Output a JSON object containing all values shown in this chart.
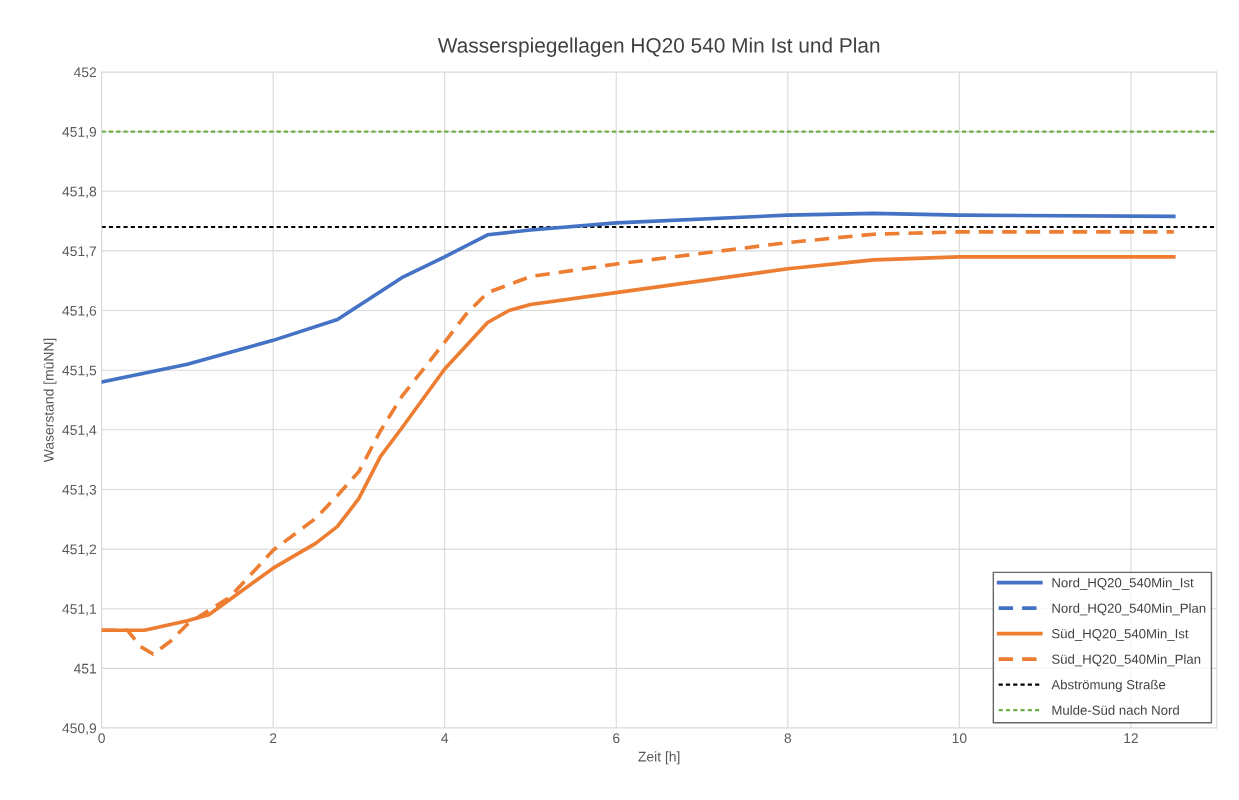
{
  "chart_data": {
    "type": "line",
    "title": "Wasserspiegellagen HQ20 540 Min Ist und Plan",
    "xlabel": "Zeit [h]",
    "ylabel": "Waserstand [müNN]",
    "xlim": [
      0,
      13
    ],
    "xticks": [
      0,
      2,
      4,
      6,
      8,
      10,
      12
    ],
    "ylim": [
      450.9,
      452
    ],
    "yticks": [
      {
        "value": 450.9,
        "label": "450,9"
      },
      451,
      {
        "value": 451.1,
        "label": "451,1"
      },
      {
        "value": 451.2,
        "label": "451,2"
      },
      {
        "value": 451.3,
        "label": "451,3"
      },
      {
        "value": 451.4,
        "label": "451,4"
      },
      {
        "value": 451.5,
        "label": "451,5"
      },
      {
        "value": 451.6,
        "label": "451,6"
      },
      {
        "value": 451.7,
        "label": "451,7"
      },
      {
        "value": 451.8,
        "label": "451,8"
      },
      {
        "value": 451.9,
        "label": "451,9"
      },
      452
    ],
    "grid": true,
    "legend": "bottom right",
    "marker": "none",
    "series": [
      {
        "name": "Nord_HQ20_540Min_Ist",
        "color": "#4472c4",
        "line_style": "solid",
        "x": [
          0,
          1,
          2,
          2.75,
          3.5,
          4,
          4.5,
          5,
          6,
          8,
          9,
          10,
          12.5
        ],
        "values": [
          451.48,
          451.51,
          451.55,
          451.585,
          451.655,
          451.69,
          451.727,
          451.735,
          451.747,
          451.76,
          451.763,
          451.76,
          451.758
        ]
      },
      {
        "name": "Nord_HQ20_540Min_Plan",
        "color": "#4472c4",
        "line_style": "dashed"
      },
      {
        "name": "Süd_HQ20_540Min_Ist",
        "color": "#ed7d31",
        "line_style": "solid",
        "x": [
          0,
          0.5,
          0.75,
          1,
          1.25,
          1.5,
          2,
          2.5,
          2.75,
          3,
          3.25,
          3.5,
          4,
          4.5,
          4.75,
          5,
          6,
          8,
          9,
          10,
          12.5
        ],
        "values": [
          451.064,
          451.064,
          451.072,
          451.08,
          451.09,
          451.116,
          451.168,
          451.21,
          451.238,
          451.285,
          451.355,
          451.403,
          451.502,
          451.58,
          451.6,
          451.61,
          451.63,
          451.67,
          451.685,
          451.69,
          451.69
        ]
      },
      {
        "name": "Süd_HQ20_540Min_Plan",
        "color": "#ed7d31",
        "line_style": "dashed",
        "x": [
          0,
          0.3,
          0.45,
          0.6,
          0.8,
          1,
          1.5,
          2,
          2.5,
          2.75,
          3,
          3.25,
          3.5,
          4,
          4.25,
          4.5,
          5,
          6,
          8,
          9,
          10,
          12.5
        ],
        "values": [
          451.064,
          451.064,
          451.037,
          451.024,
          451.045,
          451.074,
          451.12,
          451.198,
          451.252,
          451.29,
          451.33,
          451.398,
          451.456,
          451.547,
          451.594,
          451.63,
          451.657,
          451.678,
          451.714,
          451.728,
          451.732,
          451.732
        ]
      }
    ],
    "ref_lines": [
      {
        "axis": "y",
        "value": 451.74,
        "label": "Abströmung Straße",
        "color": "#000000",
        "line_style": "dashed"
      },
      {
        "axis": "y",
        "value": 451.9,
        "label": "Mulde-Süd nach Nord",
        "color": "#70ad47",
        "line_style": "dashed"
      }
    ]
  }
}
